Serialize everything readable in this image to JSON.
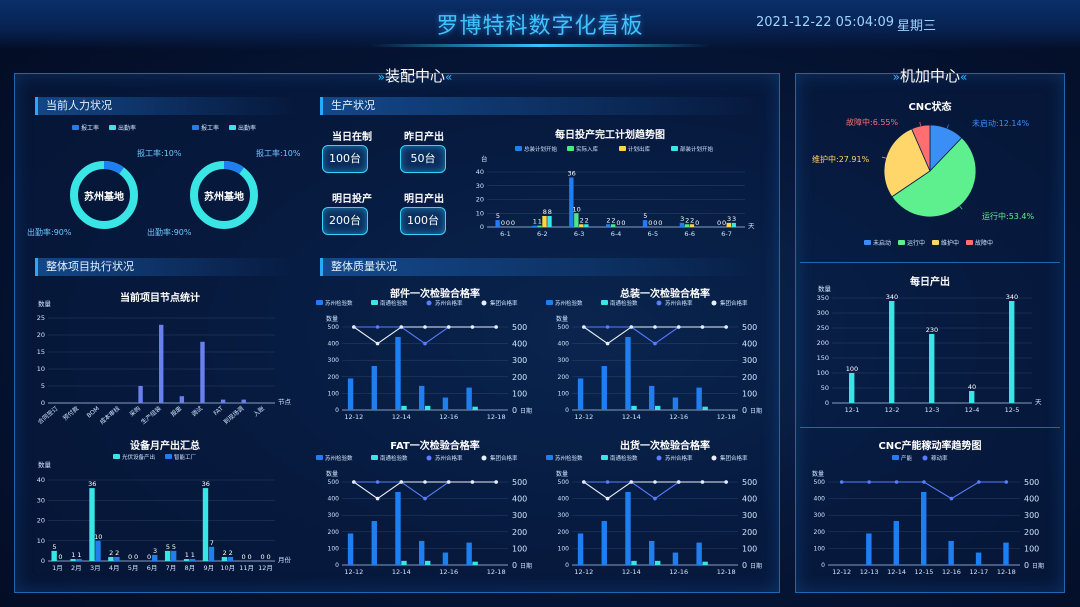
{
  "header": {
    "title": "罗博特科数字化看板",
    "datetime": "2021-12-22 05:04:09",
    "weekday": "星期三"
  },
  "assembly": {
    "title": "装配中心",
    "workforce": {
      "title": "当前人力状况",
      "legend_a": "报工率",
      "legend_b": "出勤率",
      "donuts": [
        {
          "name": "苏州基地",
          "report_label": "报工率:10%",
          "attend_label": "出勤率:90%"
        },
        {
          "name": "苏州基地",
          "report_label": "报工率:10%",
          "attend_label": "出勤率:90%"
        }
      ]
    },
    "production": {
      "title": "生产状况",
      "kpis": [
        {
          "label": "当日在制",
          "value": "100台"
        },
        {
          "label": "昨日产出",
          "value": "50台"
        },
        {
          "label": "明日投产",
          "value": "200台"
        },
        {
          "label": "明日产出",
          "value": "100台"
        }
      ]
    },
    "project": {
      "title": "整体项目执行状况"
    },
    "quality": {
      "title": "整体质量状况"
    }
  },
  "machining": {
    "title": "机加中心"
  },
  "colors": {
    "blue": "#1f7ef0",
    "cyan": "#39e5e5",
    "yellow": "#ffd447",
    "green": "#4de886",
    "red": "#ff6b6b",
    "accent": "#2fb8ff"
  },
  "chart_data": [
    {
      "id": "plan-trend",
      "type": "bar",
      "title": "每日投产完工计划趋势图",
      "ylabel": "台",
      "xlabel": "天",
      "ylim": [
        0,
        40
      ],
      "yticks": [
        0,
        10,
        20,
        30,
        40
      ],
      "categories": [
        "6-1",
        "6-2",
        "6-3",
        "6-4",
        "6-5",
        "6-6",
        "6-7"
      ],
      "series": [
        {
          "name": "总装计划开始",
          "color": "#1f7ef0",
          "values": [
            5,
            1,
            36,
            2,
            5,
            3,
            0
          ]
        },
        {
          "name": "实际入库",
          "color": "#4de886",
          "values": [
            0,
            1,
            10,
            2,
            0,
            2,
            0
          ]
        },
        {
          "name": "计划出库",
          "color": "#ffd447",
          "values": [
            0,
            8,
            2,
            0,
            0,
            2,
            3
          ]
        },
        {
          "name": "部装计划开始",
          "color": "#39e5e5",
          "values": [
            0,
            8,
            2,
            0,
            0,
            0,
            3
          ]
        }
      ]
    },
    {
      "id": "node-stats",
      "type": "bar",
      "title": "当前项目节点统计",
      "ylabel": "数量",
      "xlabel": "节点",
      "ylim": [
        0,
        25
      ],
      "yticks": [
        0,
        5,
        10,
        15,
        20,
        25
      ],
      "categories": [
        "合同签订",
        "预付款",
        "BOM",
        "成本审核",
        "采购",
        "生产组装",
        "报废",
        "调试",
        "FAT",
        "到现场调",
        "入账"
      ],
      "series": [
        {
          "name": "数量",
          "color": "#6a7ff0",
          "values": [
            0,
            0,
            0,
            0,
            5,
            23,
            2,
            18,
            1,
            1,
            0
          ]
        }
      ]
    },
    {
      "id": "monthly-output",
      "type": "bar",
      "title": "设备月产出汇总",
      "ylabel": "数量",
      "xlabel": "月份",
      "ylim": [
        0,
        40
      ],
      "yticks": [
        0,
        10,
        20,
        30,
        40
      ],
      "categories": [
        "1月",
        "2月",
        "3月",
        "4月",
        "5月",
        "6月",
        "7月",
        "8月",
        "9月",
        "10月",
        "11月",
        "12月"
      ],
      "series": [
        {
          "name": "光伏设备产出",
          "color": "#39e5e5",
          "values": [
            5,
            1,
            36,
            2,
            0,
            0,
            5,
            1,
            36,
            2,
            0,
            0
          ]
        },
        {
          "name": "智能工厂",
          "color": "#1f7ef0",
          "values": [
            0,
            1,
            10,
            2,
            0,
            3,
            5,
            1,
            7,
            2,
            0,
            0
          ]
        }
      ]
    },
    {
      "id": "q-part",
      "type": "combo",
      "title": "部件一次检验合格率",
      "ylabel": "数量",
      "xlabel": "日期",
      "ylim": [
        0,
        500
      ],
      "y2lim": [
        0,
        500
      ],
      "yticks": [
        0,
        100,
        200,
        300,
        400,
        500
      ],
      "categories": [
        "12-12",
        "12-13",
        "12-14",
        "12-15",
        "12-16",
        "12-17",
        "12-18"
      ],
      "xtick_labels": [
        "12-12",
        "",
        "12-14",
        "",
        "12-16",
        "",
        "12-18"
      ],
      "series": [
        {
          "name": "苏州检验数",
          "kind": "bar",
          "color": "#1f7ef0",
          "values": [
            190,
            265,
            440,
            145,
            75,
            135,
            0
          ]
        },
        {
          "name": "南通检验数",
          "kind": "bar",
          "color": "#39e5e5",
          "values": [
            0,
            0,
            25,
            25,
            0,
            20,
            0
          ]
        },
        {
          "name": "苏州合格率",
          "kind": "line",
          "color": "#5a7cff",
          "values": [
            500,
            500,
            500,
            400,
            500,
            500,
            500
          ]
        },
        {
          "name": "集团合格率",
          "kind": "line",
          "color": "#e8eef8",
          "values": [
            500,
            400,
            500,
            500,
            500,
            500,
            500
          ]
        }
      ]
    },
    {
      "id": "q-final",
      "type": "combo",
      "title": "总装一次检验合格率",
      "ylabel": "数量",
      "xlabel": "日期",
      "ylim": [
        0,
        500
      ],
      "y2lim": [
        0,
        500
      ],
      "yticks": [
        0,
        100,
        200,
        300,
        400,
        500
      ],
      "categories": [
        "12-12",
        "12-13",
        "12-14",
        "12-15",
        "12-16",
        "12-17",
        "12-18"
      ],
      "xtick_labels": [
        "12-12",
        "",
        "12-14",
        "",
        "12-16",
        "",
        "12-18"
      ],
      "series": [
        {
          "name": "苏州检验数",
          "kind": "bar",
          "color": "#1f7ef0",
          "values": [
            190,
            265,
            440,
            145,
            75,
            135,
            0
          ]
        },
        {
          "name": "南通检验数",
          "kind": "bar",
          "color": "#39e5e5",
          "values": [
            0,
            0,
            25,
            25,
            0,
            20,
            0
          ]
        },
        {
          "name": "苏州合格率",
          "kind": "line",
          "color": "#5a7cff",
          "values": [
            500,
            500,
            500,
            400,
            500,
            500,
            500
          ]
        },
        {
          "name": "集团合格率",
          "kind": "line",
          "color": "#e8eef8",
          "values": [
            500,
            400,
            500,
            500,
            500,
            500,
            500
          ]
        }
      ]
    },
    {
      "id": "q-fat",
      "type": "combo",
      "title": "FAT一次检验合格率",
      "ylabel": "数量",
      "xlabel": "日期",
      "ylim": [
        0,
        500
      ],
      "y2lim": [
        0,
        500
      ],
      "yticks": [
        0,
        100,
        200,
        300,
        400,
        500
      ],
      "categories": [
        "12-12",
        "12-13",
        "12-14",
        "12-15",
        "12-16",
        "12-17",
        "12-18"
      ],
      "xtick_labels": [
        "12-12",
        "",
        "12-14",
        "",
        "12-16",
        "",
        "12-18"
      ],
      "series": [
        {
          "name": "苏州检验数",
          "kind": "bar",
          "color": "#1f7ef0",
          "values": [
            190,
            265,
            440,
            145,
            75,
            135,
            0
          ]
        },
        {
          "name": "南通检验数",
          "kind": "bar",
          "color": "#39e5e5",
          "values": [
            0,
            0,
            25,
            25,
            0,
            20,
            0
          ]
        },
        {
          "name": "苏州合格率",
          "kind": "line",
          "color": "#5a7cff",
          "values": [
            500,
            500,
            500,
            400,
            500,
            500,
            500
          ]
        },
        {
          "name": "集团合格率",
          "kind": "line",
          "color": "#e8eef8",
          "values": [
            500,
            400,
            500,
            500,
            500,
            500,
            500
          ]
        }
      ]
    },
    {
      "id": "q-ship",
      "type": "combo",
      "title": "出货一次检验合格率",
      "ylabel": "数量",
      "xlabel": "日期",
      "ylim": [
        0,
        500
      ],
      "y2lim": [
        0,
        500
      ],
      "yticks": [
        0,
        100,
        200,
        300,
        400,
        500
      ],
      "categories": [
        "12-12",
        "12-13",
        "12-14",
        "12-15",
        "12-16",
        "12-17",
        "12-18"
      ],
      "xtick_labels": [
        "12-12",
        "",
        "12-14",
        "",
        "12-16",
        "",
        "12-18"
      ],
      "series": [
        {
          "name": "苏州检验数",
          "kind": "bar",
          "color": "#1f7ef0",
          "values": [
            190,
            265,
            440,
            145,
            75,
            135,
            0
          ]
        },
        {
          "name": "南通检验数",
          "kind": "bar",
          "color": "#39e5e5",
          "values": [
            0,
            0,
            25,
            25,
            0,
            20,
            0
          ]
        },
        {
          "name": "苏州合格率",
          "kind": "line",
          "color": "#5a7cff",
          "values": [
            500,
            500,
            500,
            400,
            500,
            500,
            500
          ]
        },
        {
          "name": "集团合格率",
          "kind": "line",
          "color": "#e8eef8",
          "values": [
            500,
            400,
            500,
            500,
            500,
            500,
            500
          ]
        }
      ]
    },
    {
      "id": "cnc-status",
      "type": "pie",
      "title": "CNC状态",
      "slices": [
        {
          "name": "未启动",
          "value": 12.14,
          "label": "未启动:12.14%",
          "color": "#3a8ef5"
        },
        {
          "name": "运行中",
          "value": 53.4,
          "label": "运行中:53.4%",
          "color": "#5ef08f"
        },
        {
          "name": "维护中",
          "value": 27.91,
          "label": "维护中:27.91%",
          "color": "#ffd66a"
        },
        {
          "name": "故障中",
          "value": 6.55,
          "label": "故障中:6.55%",
          "color": "#ff6f6f"
        }
      ]
    },
    {
      "id": "daily-output",
      "type": "bar",
      "title": "每日产出",
      "ylabel": "数量",
      "xlabel": "天",
      "ylim": [
        0,
        350
      ],
      "yticks": [
        0,
        50,
        100,
        150,
        200,
        250,
        300,
        350
      ],
      "categories": [
        "12-1",
        "12-2",
        "12-3",
        "12-4",
        "12-5"
      ],
      "series": [
        {
          "name": "产出",
          "color": "#39e5e5",
          "values": [
            100,
            340,
            230,
            40,
            340
          ]
        }
      ]
    },
    {
      "id": "cnc-util",
      "type": "combo",
      "title": "CNC产能稼动率趋势图",
      "ylabel": "数量",
      "xlabel": "日期",
      "ylim": [
        0,
        500
      ],
      "y2lim": [
        0,
        500
      ],
      "yticks": [
        0,
        100,
        200,
        300,
        400,
        500
      ],
      "categories": [
        "12-12",
        "12-13",
        "12-14",
        "12-15",
        "12-16",
        "12-17",
        "12-18"
      ],
      "xtick_labels": [
        "12-12",
        "12-13",
        "12-14",
        "12-15",
        "12-16",
        "12-17",
        "12-18"
      ],
      "series": [
        {
          "name": "产能",
          "kind": "bar",
          "color": "#1f7ef0",
          "values": [
            0,
            190,
            265,
            440,
            145,
            75,
            135
          ]
        },
        {
          "name": "稼动率",
          "kind": "line",
          "color": "#5a7cff",
          "values": [
            500,
            500,
            500,
            500,
            400,
            500,
            500
          ]
        }
      ]
    }
  ]
}
